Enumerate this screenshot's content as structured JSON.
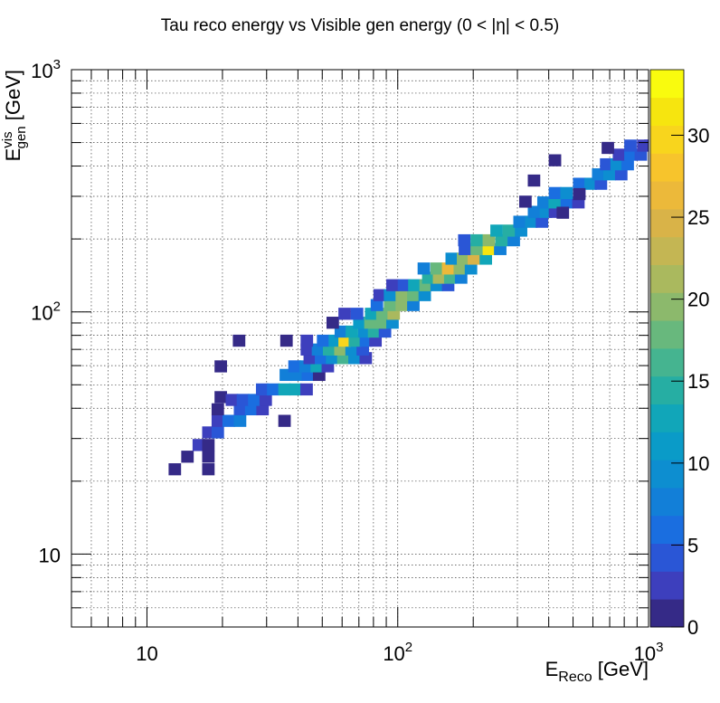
{
  "chart_data": {
    "type": "heatmap",
    "title": "Tau reco energy vs Visible gen energy (0 < |η| < 0.5)",
    "xlabel": {
      "main": "E",
      "sub": "Reco",
      "unit": " [GeV]"
    },
    "ylabel": {
      "main": "E",
      "sup": "vis",
      "sub": "gen",
      "unit": " [GeV]"
    },
    "x_scale": "log",
    "y_scale": "log",
    "xlim": [
      5,
      1000
    ],
    "ylim": [
      5,
      1000
    ],
    "grid": true,
    "x_tick_labels": [
      {
        "value": 10,
        "base": "10",
        "exp": ""
      },
      {
        "value": 100,
        "base": "10",
        "exp": "2"
      },
      {
        "value": 1000,
        "base": "10",
        "exp": "3"
      }
    ],
    "y_tick_labels": [
      {
        "value": 10,
        "base": "10",
        "exp": ""
      },
      {
        "value": 100,
        "base": "10",
        "exp": "2"
      },
      {
        "value": 1000,
        "base": "10",
        "exp": "3"
      }
    ],
    "colorbar": {
      "min": 0,
      "max": 34,
      "ticks": [
        "0",
        "5",
        "10",
        "15",
        "20",
        "25",
        "30"
      ],
      "tick_values": [
        0,
        5,
        10,
        15,
        20,
        25,
        30
      ],
      "palette": [
        "#352a87",
        "#3d3fbd",
        "#2a56d6",
        "#1a6ee0",
        "#127fd8",
        "#0d8ed0",
        "#0a9bc8",
        "#11a6b9",
        "#26aea3",
        "#45b490",
        "#68b87d",
        "#8cb96c",
        "#aab95e",
        "#c4b653",
        "#d9b348",
        "#ecb93a",
        "#f7c42c",
        "#f8d51d",
        "#f6e50f",
        "#f9fb0e"
      ]
    },
    "bins_x_log_step": 0.0486,
    "bins_y_log_step": 0.0486,
    "cells": [
      [
        12.2,
        21.2,
        1
      ],
      [
        13.7,
        23.9,
        1
      ],
      [
        16.6,
        21.2,
        1
      ],
      [
        16.6,
        23.9,
        1
      ],
      [
        15.2,
        26.7,
        2
      ],
      [
        16.6,
        26.7,
        1
      ],
      [
        16.6,
        30.1,
        3
      ],
      [
        18.1,
        30.1,
        5
      ],
      [
        18.1,
        33.6,
        3
      ],
      [
        20.0,
        33.6,
        6
      ],
      [
        22.2,
        33.6,
        7
      ],
      [
        18.1,
        37.5,
        1
      ],
      [
        22.2,
        37.5,
        5
      ],
      [
        24.6,
        37.5,
        6
      ],
      [
        27.3,
        37.5,
        3
      ],
      [
        18.6,
        42.1,
        1
      ],
      [
        20.6,
        41.0,
        2
      ],
      [
        22.8,
        41.0,
        4
      ],
      [
        25.3,
        41.0,
        6
      ],
      [
        28.1,
        41.0,
        3
      ],
      [
        27.2,
        45.3,
        4
      ],
      [
        30.1,
        45.3,
        6
      ],
      [
        33.4,
        45.3,
        12
      ],
      [
        36.9,
        45.3,
        13
      ],
      [
        40.9,
        45.3,
        3
      ],
      [
        33.8,
        52.0,
        7
      ],
      [
        37.4,
        52.0,
        8
      ],
      [
        41.4,
        52.0,
        6
      ],
      [
        45.9,
        52.0,
        1
      ],
      [
        36.6,
        56.4,
        6
      ],
      [
        40.5,
        56.4,
        8
      ],
      [
        44.9,
        56.4,
        12
      ],
      [
        49.7,
        56.4,
        2
      ],
      [
        42.1,
        61.0,
        3
      ],
      [
        46.7,
        61.0,
        6
      ],
      [
        51.7,
        61.0,
        10
      ],
      [
        57.3,
        61.0,
        16
      ],
      [
        63.5,
        61.0,
        10
      ],
      [
        70.4,
        61.0,
        2
      ],
      [
        41.0,
        66.2,
        2
      ],
      [
        45.4,
        66.2,
        8
      ],
      [
        50.3,
        66.2,
        15
      ],
      [
        55.8,
        66.2,
        20
      ],
      [
        61.8,
        66.2,
        10
      ],
      [
        68.5,
        66.2,
        5
      ],
      [
        41.0,
        72.0,
        2
      ],
      [
        47.6,
        72.0,
        6
      ],
      [
        53.0,
        72.0,
        11
      ],
      [
        58.0,
        72.0,
        30
      ],
      [
        63.7,
        72.0,
        14
      ],
      [
        70.5,
        72.0,
        6
      ],
      [
        77.0,
        72.0,
        3
      ],
      [
        22.0,
        72.0,
        1
      ],
      [
        34.0,
        72.0,
        1
      ],
      [
        56.0,
        78.5,
        7
      ],
      [
        62.0,
        78.5,
        12
      ],
      [
        69.5,
        78.5,
        9
      ],
      [
        76.0,
        78.5,
        14
      ],
      [
        84.0,
        78.5,
        4
      ],
      [
        52.0,
        85.4,
        1
      ],
      [
        66.4,
        85.4,
        11
      ],
      [
        73.5,
        85.4,
        18
      ],
      [
        81.3,
        85.4,
        17
      ],
      [
        90.0,
        85.4,
        10
      ],
      [
        58.0,
        93.0,
        3
      ],
      [
        65.0,
        93.0,
        5
      ],
      [
        74.0,
        93.0,
        12
      ],
      [
        82.0,
        93.0,
        18
      ],
      [
        91.0,
        93.0,
        22
      ],
      [
        78.0,
        101,
        6
      ],
      [
        88.0,
        101,
        18
      ],
      [
        98.0,
        101,
        20
      ],
      [
        109,
        101,
        8
      ],
      [
        80.0,
        111,
        2
      ],
      [
        88.0,
        111,
        9
      ],
      [
        98.0,
        111,
        20
      ],
      [
        109,
        111,
        18
      ],
      [
        121,
        111,
        9
      ],
      [
        90.0,
        122,
        3
      ],
      [
        100,
        122,
        5
      ],
      [
        110,
        122,
        12
      ],
      [
        122,
        122,
        18
      ],
      [
        135,
        122,
        9
      ],
      [
        150,
        122,
        4
      ],
      [
        125,
        131,
        14
      ],
      [
        138,
        131,
        22
      ],
      [
        153,
        131,
        16
      ],
      [
        169,
        131,
        8
      ],
      [
        120,
        143,
        7
      ],
      [
        135,
        143,
        18
      ],
      [
        150,
        143,
        27
      ],
      [
        167,
        143,
        20
      ],
      [
        185,
        143,
        10
      ],
      [
        155,
        157,
        9
      ],
      [
        172,
        157,
        20
      ],
      [
        190,
        157,
        25
      ],
      [
        212,
        157,
        12
      ],
      [
        175,
        172,
        5
      ],
      [
        195,
        172,
        18
      ],
      [
        218,
        172,
        31
      ],
      [
        242,
        172,
        8
      ],
      [
        174,
        187,
        4
      ],
      [
        195,
        187,
        14
      ],
      [
        218,
        187,
        20
      ],
      [
        245,
        187,
        14
      ],
      [
        274,
        187,
        7
      ],
      [
        234,
        205,
        12
      ],
      [
        262,
        205,
        14
      ],
      [
        293,
        205,
        10
      ],
      [
        289,
        223,
        8
      ],
      [
        322,
        223,
        10
      ],
      [
        355,
        223,
        5
      ],
      [
        330,
        245,
        8
      ],
      [
        368,
        245,
        9
      ],
      [
        400,
        245,
        3
      ],
      [
        360,
        268,
        8
      ],
      [
        399,
        268,
        12
      ],
      [
        446,
        268,
        6
      ],
      [
        496,
        268,
        3
      ],
      [
        400,
        293,
        6
      ],
      [
        445,
        293,
        10
      ],
      [
        500,
        293,
        3
      ],
      [
        500,
        320,
        6
      ],
      [
        555,
        320,
        9
      ],
      [
        610,
        320,
        5
      ],
      [
        595,
        350,
        8
      ],
      [
        660,
        350,
        10
      ],
      [
        735,
        350,
        4
      ],
      [
        640,
        385,
        5
      ],
      [
        705,
        385,
        9
      ],
      [
        780,
        385,
        6
      ],
      [
        720,
        422,
        3
      ],
      [
        800,
        422,
        6
      ],
      [
        880,
        422,
        5
      ],
      [
        800,
        460,
        4
      ],
      [
        900,
        460,
        3
      ],
      [
        960,
        460,
        2
      ],
      [
        305,
        270,
        1
      ],
      [
        500,
        290,
        1
      ],
      [
        430,
        243,
        1
      ],
      [
        330,
        330,
        1
      ],
      [
        400,
        400,
        1
      ],
      [
        650,
        450,
        1
      ],
      [
        18.6,
        56.4,
        1
      ],
      [
        33.4,
        33.6,
        1
      ]
    ]
  }
}
